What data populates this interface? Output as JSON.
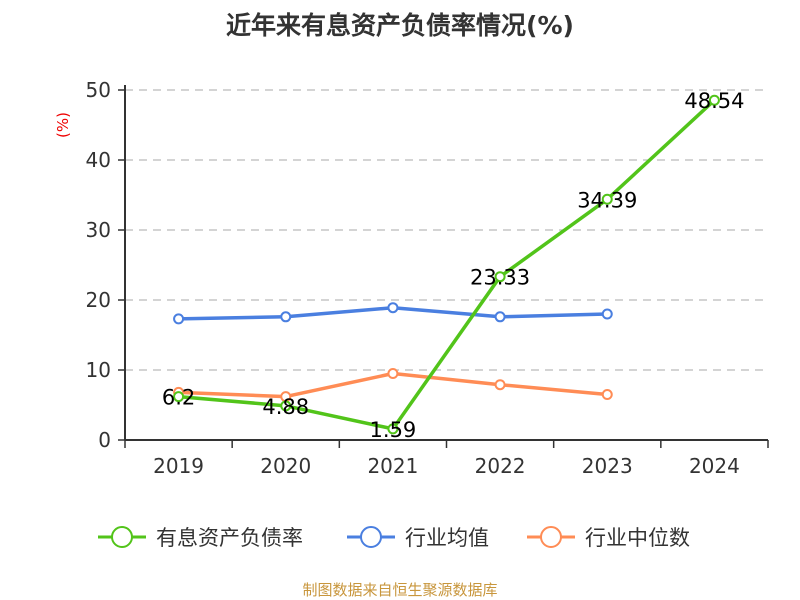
{
  "title": "近年来有息资产负债率情况(%)",
  "source": "制图数据来自恒生聚源数据库",
  "chart_data": {
    "type": "line",
    "title": "近年来有息资产负债率情况(%)",
    "ylabel": "(%)",
    "xlabel": "",
    "categories": [
      "2019",
      "2020",
      "2021",
      "2022",
      "2023",
      "2024"
    ],
    "ylim": [
      0,
      50
    ],
    "yticks": [
      0,
      10,
      20,
      30,
      40,
      50
    ],
    "grid": "horizontal dashed",
    "legend_position": "bottom",
    "series": [
      {
        "name": "有息资产负债率",
        "color": "#52c41a",
        "values": [
          6.2,
          4.88,
          1.59,
          23.33,
          34.39,
          48.54
        ],
        "labels": [
          "6.2",
          "4.88",
          "1.59",
          "23.33",
          "34.39",
          "48.54"
        ]
      },
      {
        "name": "行业均值",
        "color": "#4a7fe0",
        "values": [
          17.3,
          17.6,
          18.9,
          17.6,
          18.0,
          null
        ]
      },
      {
        "name": "行业中位数",
        "color": "#ff8c55",
        "values": [
          6.8,
          6.2,
          9.5,
          7.9,
          6.5,
          null
        ]
      }
    ]
  }
}
